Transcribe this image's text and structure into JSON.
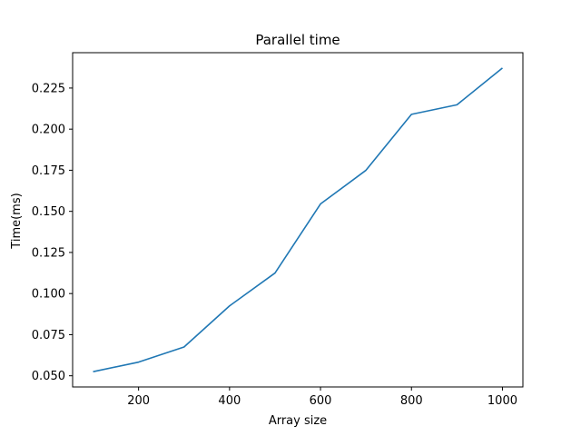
{
  "chart_data": {
    "type": "line",
    "title": "Parallel time",
    "xlabel": "Array size",
    "ylabel": "Time(ms)",
    "x": [
      100,
      200,
      300,
      400,
      500,
      600,
      700,
      800,
      900,
      1000
    ],
    "series": [
      {
        "values": [
          0.0525,
          0.0583,
          0.0675,
          0.0925,
          0.1125,
          0.1545,
          0.175,
          0.209,
          0.2148,
          0.2372
        ],
        "color": "#1f77b4"
      }
    ],
    "xlim": [
      55,
      1045
    ],
    "ylim": [
      0.0432,
      0.2465
    ],
    "xticks": [
      200,
      400,
      600,
      800,
      1000
    ],
    "xtick_labels": [
      "200",
      "400",
      "600",
      "800",
      "1000"
    ],
    "yticks": [
      0.05,
      0.075,
      0.1,
      0.125,
      0.15,
      0.175,
      0.2,
      0.225
    ],
    "ytick_labels": [
      "0.050",
      "0.075",
      "0.100",
      "0.125",
      "0.150",
      "0.175",
      "0.200",
      "0.225"
    ],
    "grid": false,
    "legend": "none"
  }
}
